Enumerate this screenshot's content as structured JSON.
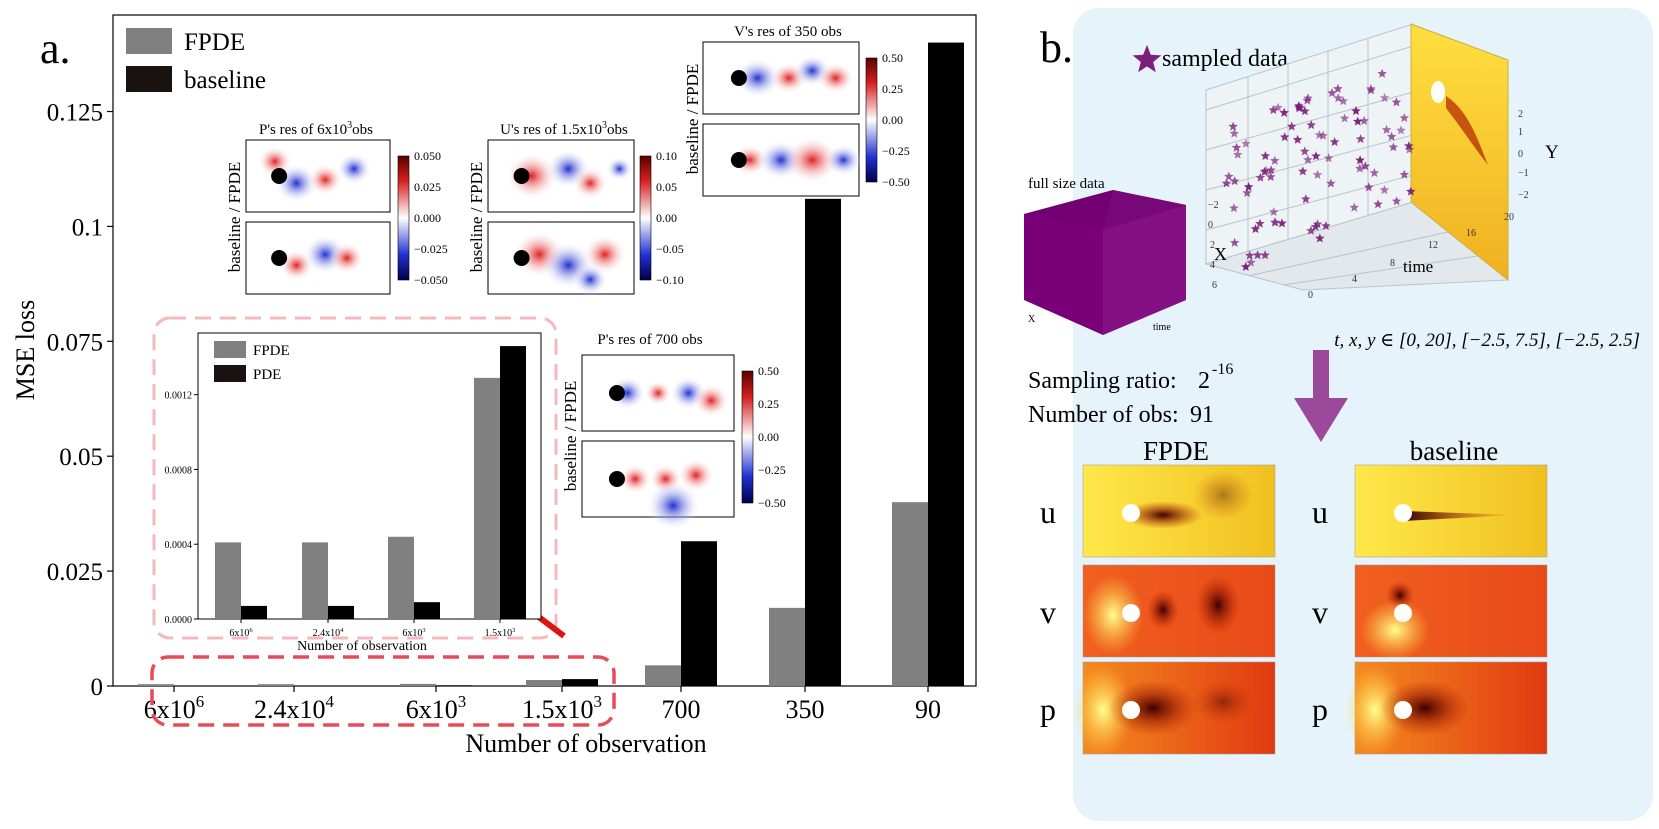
{
  "panel_a": {
    "label": "a.",
    "ylabel": "MSE loss",
    "xlabel": "Number of observation",
    "legend": [
      {
        "name": "FPDE",
        "color": "#808080"
      },
      {
        "name": "baseline",
        "color": "#1a1111"
      }
    ],
    "yticks": [
      "0",
      "0.025",
      "0.05",
      "0.075",
      "0.1",
      "0.125"
    ],
    "xtick_display": [
      {
        "base": "6x10",
        "exp": "6"
      },
      {
        "base": "2.4x10",
        "exp": "4"
      },
      {
        "base": "6x10",
        "exp": "3"
      },
      {
        "base": "1.5x10",
        "exp": "3"
      },
      {
        "base": "700",
        "exp": ""
      },
      {
        "base": "350",
        "exp": ""
      },
      {
        "base": "90",
        "exp": ""
      }
    ],
    "insets": [
      {
        "title": "P's res of 6x10",
        "title_exp": "3",
        "title_suffix": "obs",
        "row_label": "baseline / FPDE",
        "cbar": [
          "0.050",
          "0.025",
          "0.000",
          "−0.025",
          "−0.050"
        ]
      },
      {
        "title": "U's res of 1.5x10",
        "title_exp": "3",
        "title_suffix": "obs",
        "row_label": "baseline / FPDE",
        "cbar": [
          "0.10",
          "0.05",
          "0.00",
          "−0.05",
          "−0.10"
        ]
      },
      {
        "title": "V's res of 350 obs",
        "title_exp": "",
        "title_suffix": "",
        "row_label": "baseline / FPDE",
        "cbar": [
          "0.50",
          "0.25",
          "0.00",
          "−0.25",
          "−0.50"
        ]
      },
      {
        "title": "P's res of 700 obs",
        "title_exp": "",
        "title_suffix": "",
        "row_label": "baseline / FPDE",
        "cbar": [
          "0.50",
          "0.25",
          "0.00",
          "−0.25",
          "−0.50"
        ]
      }
    ]
  },
  "zoom_inset": {
    "legend": [
      {
        "name": "FPDE",
        "color": "#808080"
      },
      {
        "name": "PDE",
        "color": "#1a1111"
      }
    ],
    "yticks": [
      "0.0000",
      "0.0004",
      "0.0008",
      "0.0012"
    ],
    "xtick_display": [
      {
        "base": "6x10",
        "exp": "6"
      },
      {
        "base": "2.4x10",
        "exp": "4"
      },
      {
        "base": "6x10",
        "exp": "3"
      },
      {
        "base": "1.5x10",
        "exp": "3"
      }
    ],
    "xlabel": "Number of observation"
  },
  "chart_data": [
    {
      "type": "bar",
      "title": "",
      "xlabel": "Number of observation",
      "ylabel": "MSE loss",
      "categories": [
        "6x10^6",
        "2.4x10^4",
        "6x10^3",
        "1.5x10^3",
        "700",
        "350",
        "90"
      ],
      "series": [
        {
          "name": "FPDE",
          "values": [
            0.0004,
            0.0004,
            0.00045,
            0.0013,
            0.0045,
            0.017,
            0.04
          ]
        },
        {
          "name": "baseline",
          "values": [
            0.0001,
            0.0001,
            0.00015,
            0.0015,
            0.0315,
            0.106,
            0.14
          ]
        }
      ],
      "ylim": [
        0,
        0.146
      ]
    },
    {
      "type": "bar",
      "title": "",
      "xlabel": "Number of observation",
      "ylabel": "",
      "categories": [
        "6x10^6",
        "2.4x10^4",
        "6x10^3",
        "1.5x10^3"
      ],
      "series": [
        {
          "name": "FPDE",
          "values": [
            0.00041,
            0.00041,
            0.00044,
            0.00129
          ]
        },
        {
          "name": "PDE",
          "values": [
            7e-05,
            7e-05,
            9e-05,
            0.00146
          ]
        }
      ],
      "ylim": [
        0,
        0.00153
      ]
    }
  ],
  "panel_b": {
    "label": "b.",
    "legend_label": "sampled data",
    "full_size_label": "full size data",
    "range_text": "t, x, y ∈ [0, 20], [−2.5, 7.5], [−2.5, 2.5]",
    "sampling_label": "Sampling ratio:",
    "sampling_base": "2",
    "sampling_exp": "-16",
    "obs_label": "Number of obs:",
    "obs_value": "91",
    "col_titles": [
      "FPDE",
      "baseline"
    ],
    "row_labels": [
      "u",
      "v",
      "p"
    ],
    "axis3d": {
      "xlabel": "X",
      "ylabel": "Y",
      "tlabel": "time"
    },
    "small_axis": {
      "xlabel": "X",
      "tlabel": "time"
    },
    "star_color": "#7a1f7a"
  }
}
